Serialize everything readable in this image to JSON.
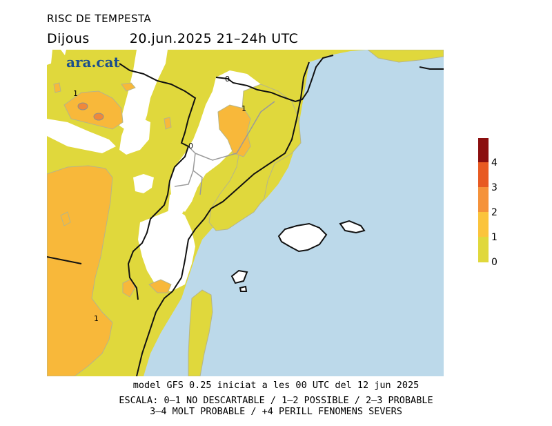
{
  "header": {
    "title": "RISC DE TEMPESTA",
    "day": "Dijous",
    "datetime": "20.jun.2025 21–24h UTC"
  },
  "brand": {
    "logo_text": "ara.cat"
  },
  "map": {
    "contour_labels": [
      "0",
      "1",
      "1",
      "1",
      "0"
    ],
    "colors": {
      "sea": "#bcd9ea",
      "level_0_1": "#e0d83c",
      "level_1_2": "#f8b83a",
      "level_2_3": "#f0883a",
      "border": "#111111",
      "admin_border": "#9a9a9a"
    }
  },
  "legend": {
    "ticks": [
      "4",
      "3",
      "2",
      "1",
      "0"
    ],
    "colors": [
      "#8b0f0f",
      "#e85a22",
      "#f5923a",
      "#fbc43c",
      "#e0d83c"
    ]
  },
  "footer": {
    "model_line": "model GFS 0.25 iniciat a les 00 UTC del 12 jun 2025",
    "scale_line_1": "ESCALA: 0–1 NO DESCARTABLE / 1–2 POSSIBLE / 2–3 PROBABLE",
    "scale_line_2": "3–4 MOLT PROBABLE / +4 PERILL FENOMENS SEVERS"
  }
}
